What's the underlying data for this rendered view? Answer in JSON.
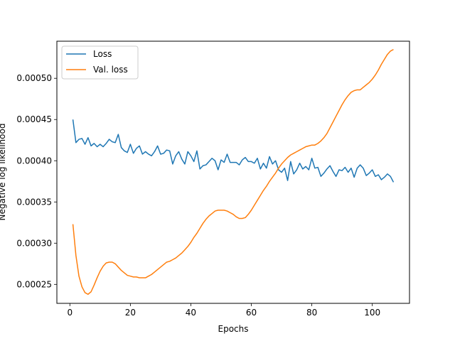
{
  "chart_data": {
    "type": "line",
    "title": "",
    "xlabel": "Epochs",
    "ylabel": "Negative log likelihood",
    "xlim": [
      -4.3,
      112.3
    ],
    "ylim": [
      0.000227,
      0.000545
    ],
    "xticks": [
      0,
      20,
      40,
      60,
      80,
      100
    ],
    "yticks": [
      0.00025,
      0.0003,
      0.00035,
      0.0004,
      0.00045,
      0.0005
    ],
    "ytick_labels": [
      "0.00025",
      "0.00030",
      "0.00035",
      "0.00040",
      "0.00045",
      "0.00050"
    ],
    "grid": false,
    "legend_position": "upper-left",
    "series": [
      {
        "name": "Loss",
        "color": "#1f77b4",
        "x": [
          1,
          2,
          3,
          4,
          5,
          6,
          7,
          8,
          9,
          10,
          11,
          12,
          13,
          14,
          15,
          16,
          17,
          18,
          19,
          20,
          21,
          22,
          23,
          24,
          25,
          26,
          27,
          28,
          29,
          30,
          31,
          32,
          33,
          34,
          35,
          36,
          37,
          38,
          39,
          40,
          41,
          42,
          43,
          44,
          45,
          46,
          47,
          48,
          49,
          50,
          51,
          52,
          53,
          54,
          55,
          56,
          57,
          58,
          59,
          60,
          61,
          62,
          63,
          64,
          65,
          66,
          67,
          68,
          69,
          70,
          71,
          72,
          73,
          74,
          75,
          76,
          77,
          78,
          79,
          80,
          81,
          82,
          83,
          84,
          85,
          86,
          87,
          88,
          89,
          90,
          91,
          92,
          93,
          94,
          95,
          96,
          97,
          98,
          99,
          100,
          101,
          102,
          103,
          104,
          105,
          106,
          107
        ],
        "values": [
          0.00045,
          0.000422,
          0.000426,
          0.000427,
          0.00042,
          0.000428,
          0.000418,
          0.000421,
          0.000417,
          0.00042,
          0.000417,
          0.000421,
          0.000426,
          0.000423,
          0.000422,
          0.000432,
          0.000416,
          0.000412,
          0.00041,
          0.00042,
          0.000409,
          0.000415,
          0.000418,
          0.000408,
          0.000411,
          0.000408,
          0.000406,
          0.000411,
          0.000418,
          0.000408,
          0.000409,
          0.000413,
          0.000412,
          0.000396,
          0.000406,
          0.000411,
          0.000402,
          0.000396,
          0.000411,
          0.000406,
          0.000399,
          0.000412,
          0.00039,
          0.000394,
          0.000395,
          0.000399,
          0.000403,
          0.0004,
          0.000389,
          0.000401,
          0.000398,
          0.000408,
          0.000398,
          0.000398,
          0.000398,
          0.000395,
          0.000401,
          0.000404,
          0.000399,
          0.000399,
          0.000397,
          0.000403,
          0.00039,
          0.000397,
          0.000391,
          0.000405,
          0.000396,
          0.0004,
          0.000389,
          0.000386,
          0.000391,
          0.000376,
          0.000399,
          0.000384,
          0.000389,
          0.000397,
          0.00039,
          0.000393,
          0.000389,
          0.000403,
          0.000391,
          0.000392,
          0.000381,
          0.000385,
          0.00039,
          0.000394,
          0.000387,
          0.000381,
          0.000389,
          0.000388,
          0.000392,
          0.000386,
          0.000391,
          0.00038,
          0.000391,
          0.000395,
          0.000391,
          0.000382,
          0.000385,
          0.000389,
          0.000381,
          0.000383,
          0.000377,
          0.00038,
          0.000384,
          0.000381,
          0.000374
        ]
      },
      {
        "name": "Val. loss",
        "color": "#ff7f0e",
        "x": [
          1,
          2,
          3,
          4,
          5,
          6,
          7,
          8,
          9,
          10,
          11,
          12,
          13,
          14,
          15,
          16,
          17,
          18,
          19,
          20,
          21,
          22,
          23,
          24,
          25,
          26,
          27,
          28,
          29,
          30,
          31,
          32,
          33,
          34,
          35,
          36,
          37,
          38,
          39,
          40,
          41,
          42,
          43,
          44,
          45,
          46,
          47,
          48,
          49,
          50,
          51,
          52,
          53,
          54,
          55,
          56,
          57,
          58,
          59,
          60,
          61,
          62,
          63,
          64,
          65,
          66,
          67,
          68,
          69,
          70,
          71,
          72,
          73,
          74,
          75,
          76,
          77,
          78,
          79,
          80,
          81,
          82,
          83,
          84,
          85,
          86,
          87,
          88,
          89,
          90,
          91,
          92,
          93,
          94,
          95,
          96,
          97,
          98,
          99,
          100,
          101,
          102,
          103,
          104,
          105,
          106,
          107
        ],
        "values": [
          0.000323,
          0.000285,
          0.00026,
          0.000247,
          0.00024,
          0.000238,
          0.000241,
          0.000249,
          0.000258,
          0.000266,
          0.000272,
          0.000276,
          0.000277,
          0.000277,
          0.000275,
          0.000271,
          0.000267,
          0.000264,
          0.000261,
          0.00026,
          0.000259,
          0.000259,
          0.000258,
          0.000258,
          0.000258,
          0.00026,
          0.000262,
          0.000265,
          0.000268,
          0.000271,
          0.000274,
          0.000277,
          0.000278,
          0.00028,
          0.000282,
          0.000285,
          0.000288,
          0.000292,
          0.000296,
          0.000301,
          0.000307,
          0.000312,
          0.000318,
          0.000324,
          0.000329,
          0.000333,
          0.000336,
          0.000339,
          0.00034,
          0.00034,
          0.00034,
          0.000339,
          0.000337,
          0.000335,
          0.000332,
          0.00033,
          0.00033,
          0.000331,
          0.000335,
          0.00034,
          0.000346,
          0.000352,
          0.000358,
          0.000364,
          0.000369,
          0.000375,
          0.00038,
          0.000385,
          0.000391,
          0.000396,
          0.0004,
          0.000404,
          0.000407,
          0.000409,
          0.000411,
          0.000413,
          0.000415,
          0.000417,
          0.000418,
          0.000419,
          0.000419,
          0.000421,
          0.000424,
          0.000428,
          0.000433,
          0.00044,
          0.000447,
          0.000454,
          0.000461,
          0.000468,
          0.000474,
          0.000479,
          0.000483,
          0.000485,
          0.000486,
          0.000486,
          0.000489,
          0.000492,
          0.000495,
          0.000499,
          0.000504,
          0.00051,
          0.000517,
          0.000523,
          0.000529,
          0.000533,
          0.000535
        ]
      }
    ]
  }
}
